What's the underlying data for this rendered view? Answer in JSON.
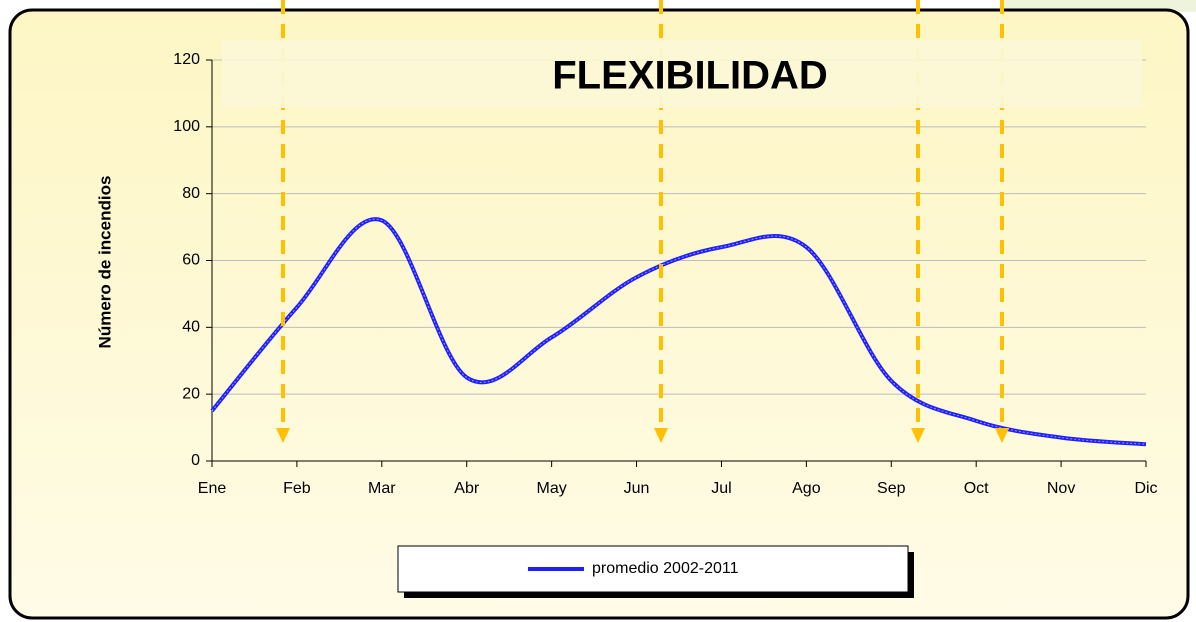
{
  "chart_data": {
    "type": "line",
    "title": "FLEXIBILIDAD",
    "y_label": "Número de incendios",
    "categories": [
      "Ene",
      "Feb",
      "Mar",
      "Abr",
      "May",
      "Jun",
      "Jul",
      "Ago",
      "Sep",
      "Oct",
      "Nov",
      "Dic"
    ],
    "series": [
      {
        "name": "promedio 2002-2011",
        "color": "#1f1fff",
        "values": [
          15,
          46,
          72,
          25,
          37,
          55,
          64,
          64,
          24,
          12,
          7,
          5
        ]
      }
    ],
    "ylim": [
      0,
      120
    ],
    "yticks": [
      0,
      20,
      40,
      60,
      80,
      100,
      120
    ],
    "grid": true
  }
}
